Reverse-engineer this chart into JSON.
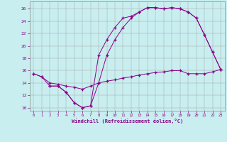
{
  "xlabel": "Windchill (Refroidissement éolien,°C)",
  "bg_color": "#c8eef0",
  "line_color": "#880088",
  "grid_color": "#aaaaaa",
  "x_ticks": [
    0,
    1,
    2,
    3,
    4,
    5,
    6,
    7,
    8,
    9,
    10,
    11,
    12,
    13,
    14,
    15,
    16,
    17,
    18,
    19,
    20,
    21,
    22,
    23
  ],
  "y_ticks": [
    10,
    12,
    14,
    16,
    18,
    20,
    22,
    24,
    26
  ],
  "ylim": [
    9.5,
    27.2
  ],
  "xlim": [
    -0.5,
    23.5
  ],
  "line1_x": [
    0,
    1,
    2,
    3,
    4,
    5,
    6,
    7,
    8,
    9,
    10,
    11,
    12,
    13,
    14,
    15,
    16,
    17,
    18,
    19,
    20,
    21,
    22,
    23
  ],
  "line1_y": [
    15.5,
    15.0,
    13.5,
    13.5,
    12.5,
    10.8,
    10.0,
    10.3,
    18.5,
    21.0,
    23.0,
    24.5,
    24.8,
    25.5,
    26.2,
    26.2,
    26.0,
    26.2,
    26.0,
    25.5,
    24.5,
    21.8,
    19.0,
    16.2
  ],
  "line2_x": [
    0,
    1,
    2,
    3,
    4,
    5,
    6,
    7,
    8,
    9,
    10,
    11,
    12,
    13,
    14,
    15,
    16,
    17,
    18,
    19,
    20,
    21,
    22,
    23
  ],
  "line2_y": [
    15.5,
    15.0,
    14.0,
    13.8,
    13.5,
    13.3,
    13.0,
    13.5,
    14.0,
    14.3,
    14.5,
    14.8,
    15.0,
    15.3,
    15.5,
    15.7,
    15.8,
    16.0,
    16.0,
    15.5,
    15.5,
    15.5,
    15.8,
    16.2
  ],
  "line3_x": [
    2,
    3,
    4,
    5,
    6,
    7,
    8,
    9,
    10,
    11,
    12,
    13,
    14,
    15,
    16,
    17,
    18,
    19,
    20,
    21,
    22,
    23
  ],
  "line3_y": [
    13.5,
    13.5,
    12.5,
    10.8,
    10.0,
    10.3,
    14.0,
    18.5,
    21.0,
    23.0,
    24.5,
    25.5,
    26.2,
    26.2,
    26.0,
    26.2,
    26.0,
    25.5,
    24.5,
    21.8,
    19.0,
    16.2
  ]
}
